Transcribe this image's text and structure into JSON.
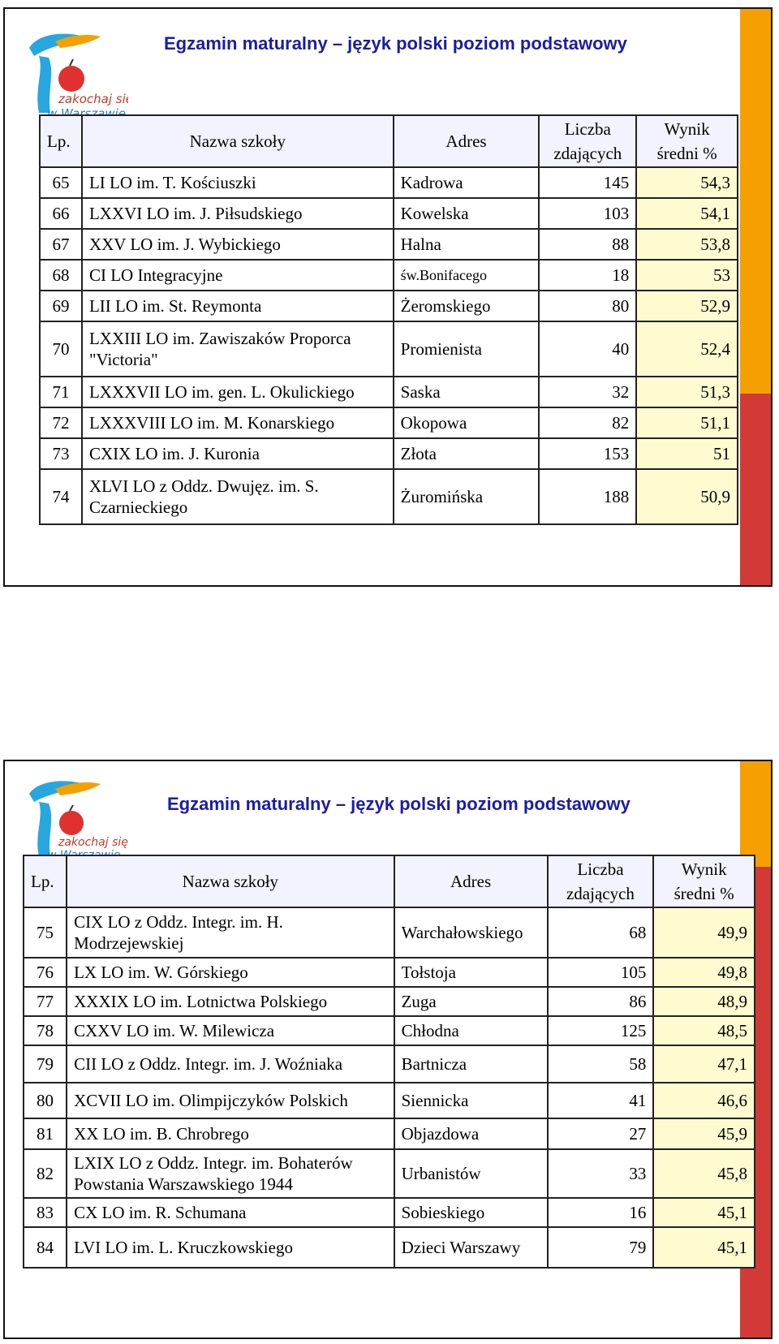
{
  "slides": [
    {
      "title": "Egzamin maturalny – język polski poziom  podstawowy",
      "logo_text": [
        "zakochaj się",
        "w Warszawie"
      ],
      "headers": {
        "lp": "Lp.",
        "name": "Nazwa szkoły",
        "addr": "Adres",
        "count_1": "Liczba",
        "count_2": "zdających",
        "score_1": "Wynik",
        "score_2": "średni %"
      },
      "rows": [
        {
          "lp": "65",
          "name": "LI LO im. T. Kościuszki",
          "addr": "Kadrowa",
          "count": "145",
          "score": "54,3"
        },
        {
          "lp": "66",
          "name": "LXXVI LO im. J. Piłsudskiego",
          "addr": "Kowelska",
          "count": "103",
          "score": "54,1"
        },
        {
          "lp": "67",
          "name": "XXV LO  im. J. Wybickiego",
          "addr": "Halna",
          "count": "88",
          "score": "53,8"
        },
        {
          "lp": "68",
          "name": "CI LO Integracyjne",
          "addr": "św.Bonifacego",
          "count": "18",
          "score": "53"
        },
        {
          "lp": "69",
          "name": "LII LO im.  St. Reymonta",
          "addr": "Żeromskiego",
          "count": "80",
          "score": "52,9"
        },
        {
          "lp": "70",
          "name": "LXXIII LO  im. Zawiszaków Proporca \"Victoria\"",
          "addr": "Promienista",
          "count": "40",
          "score": "52,4"
        },
        {
          "lp": "71",
          "name": "LXXXVII LO im. gen. L. Okulickiego",
          "addr": "Saska",
          "count": "32",
          "score": "51,3"
        },
        {
          "lp": "72",
          "name": "LXXXVIII LO  im. M. Konarskiego",
          "addr": "Okopowa",
          "count": "82",
          "score": "51,1"
        },
        {
          "lp": "73",
          "name": "CXIX LO im. J. Kuronia",
          "addr": "Złota",
          "count": "153",
          "score": "51"
        },
        {
          "lp": "74",
          "name": "XLVI LO z Oddz. Dwujęz. im. S. Czarnieckiego",
          "addr": "Żuromińska",
          "count": "188",
          "score": "50,9"
        }
      ]
    },
    {
      "title": "Egzamin maturalny – język polski poziom  podstawowy",
      "logo_text": [
        "zakochaj się",
        "w Warszawie"
      ],
      "headers": {
        "lp": "Lp.",
        "name": "Nazwa szkoły",
        "addr": "Adres",
        "count_1": "Liczba",
        "count_2": "zdających",
        "score_1": "Wynik",
        "score_2": "średni %"
      },
      "rows": [
        {
          "lp": "75",
          "name": "CIX LO z Oddz. Integr. im. H. Modrzejewskiej",
          "addr": "Warchałowskiego",
          "count": "68",
          "score": "49,9"
        },
        {
          "lp": "76",
          "name": "LX LO im. W. Górskiego",
          "addr": "Tołstoja",
          "count": "105",
          "score": "49,8"
        },
        {
          "lp": "77",
          "name": "XXXIX LO im. Lotnictwa Polskiego",
          "addr": "Zuga",
          "count": "86",
          "score": "48,9"
        },
        {
          "lp": "78",
          "name": "CXXV LO im. W. Milewicza",
          "addr": "Chłodna",
          "count": "125",
          "score": "48,5"
        },
        {
          "lp": "79",
          "name": "CII LO z Oddz. Integr. im. J. Woźniaka",
          "addr": "Bartnicza",
          "count": "58",
          "score": "47,1"
        },
        {
          "lp": "80",
          "name": "XCVII LO im. Olimpijczyków Polskich",
          "addr": "Siennicka",
          "count": "41",
          "score": "46,6"
        },
        {
          "lp": "81",
          "name": "XX LO im. B. Chrobrego",
          "addr": "Objazdowa",
          "count": "27",
          "score": "45,9"
        },
        {
          "lp": "82",
          "name": "LXIX LO z Oddz. Integr. im. Bohaterów Powstania Warszawskiego 1944",
          "addr": "Urbanistów",
          "count": "33",
          "score": "45,8"
        },
        {
          "lp": "83",
          "name": "CX LO im. R. Schumana",
          "addr": "Sobieskiego",
          "count": "16",
          "score": "45,1"
        },
        {
          "lp": "84",
          "name": "LVI LO im. L. Kruczkowskiego",
          "addr": "Dzieci Warszawy",
          "count": "79",
          "score": "45,1"
        }
      ]
    }
  ]
}
